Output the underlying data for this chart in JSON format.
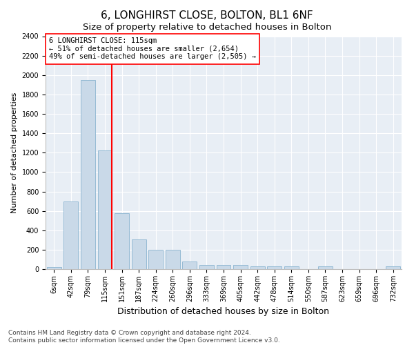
{
  "title": "6, LONGHIRST CLOSE, BOLTON, BL1 6NF",
  "subtitle": "Size of property relative to detached houses in Bolton",
  "xlabel": "Distribution of detached houses by size in Bolton",
  "ylabel": "Number of detached properties",
  "categories": [
    "6sqm",
    "42sqm",
    "79sqm",
    "115sqm",
    "151sqm",
    "187sqm",
    "224sqm",
    "260sqm",
    "296sqm",
    "333sqm",
    "369sqm",
    "405sqm",
    "442sqm",
    "478sqm",
    "514sqm",
    "550sqm",
    "587sqm",
    "623sqm",
    "659sqm",
    "696sqm",
    "732sqm"
  ],
  "values": [
    20,
    700,
    1950,
    1220,
    575,
    305,
    200,
    200,
    80,
    45,
    40,
    40,
    30,
    30,
    25,
    0,
    25,
    0,
    0,
    0,
    25
  ],
  "bar_color": "#c9d9e8",
  "bar_edgecolor": "#8ab4d0",
  "red_line_index": 3,
  "ylim": [
    0,
    2400
  ],
  "yticks": [
    0,
    200,
    400,
    600,
    800,
    1000,
    1200,
    1400,
    1600,
    1800,
    2000,
    2200,
    2400
  ],
  "annotation_title": "6 LONGHIRST CLOSE: 115sqm",
  "annotation_line1": "← 51% of detached houses are smaller (2,654)",
  "annotation_line2": "49% of semi-detached houses are larger (2,505) →",
  "footer1": "Contains HM Land Registry data © Crown copyright and database right 2024.",
  "footer2": "Contains public sector information licensed under the Open Government Licence v3.0.",
  "title_fontsize": 11,
  "subtitle_fontsize": 9.5,
  "xlabel_fontsize": 9,
  "ylabel_fontsize": 8,
  "tick_fontsize": 7,
  "annotation_fontsize": 7.5,
  "footer_fontsize": 6.5,
  "background_color": "#ffffff",
  "plot_bg_color": "#e8eef5",
  "grid_color": "#ffffff"
}
